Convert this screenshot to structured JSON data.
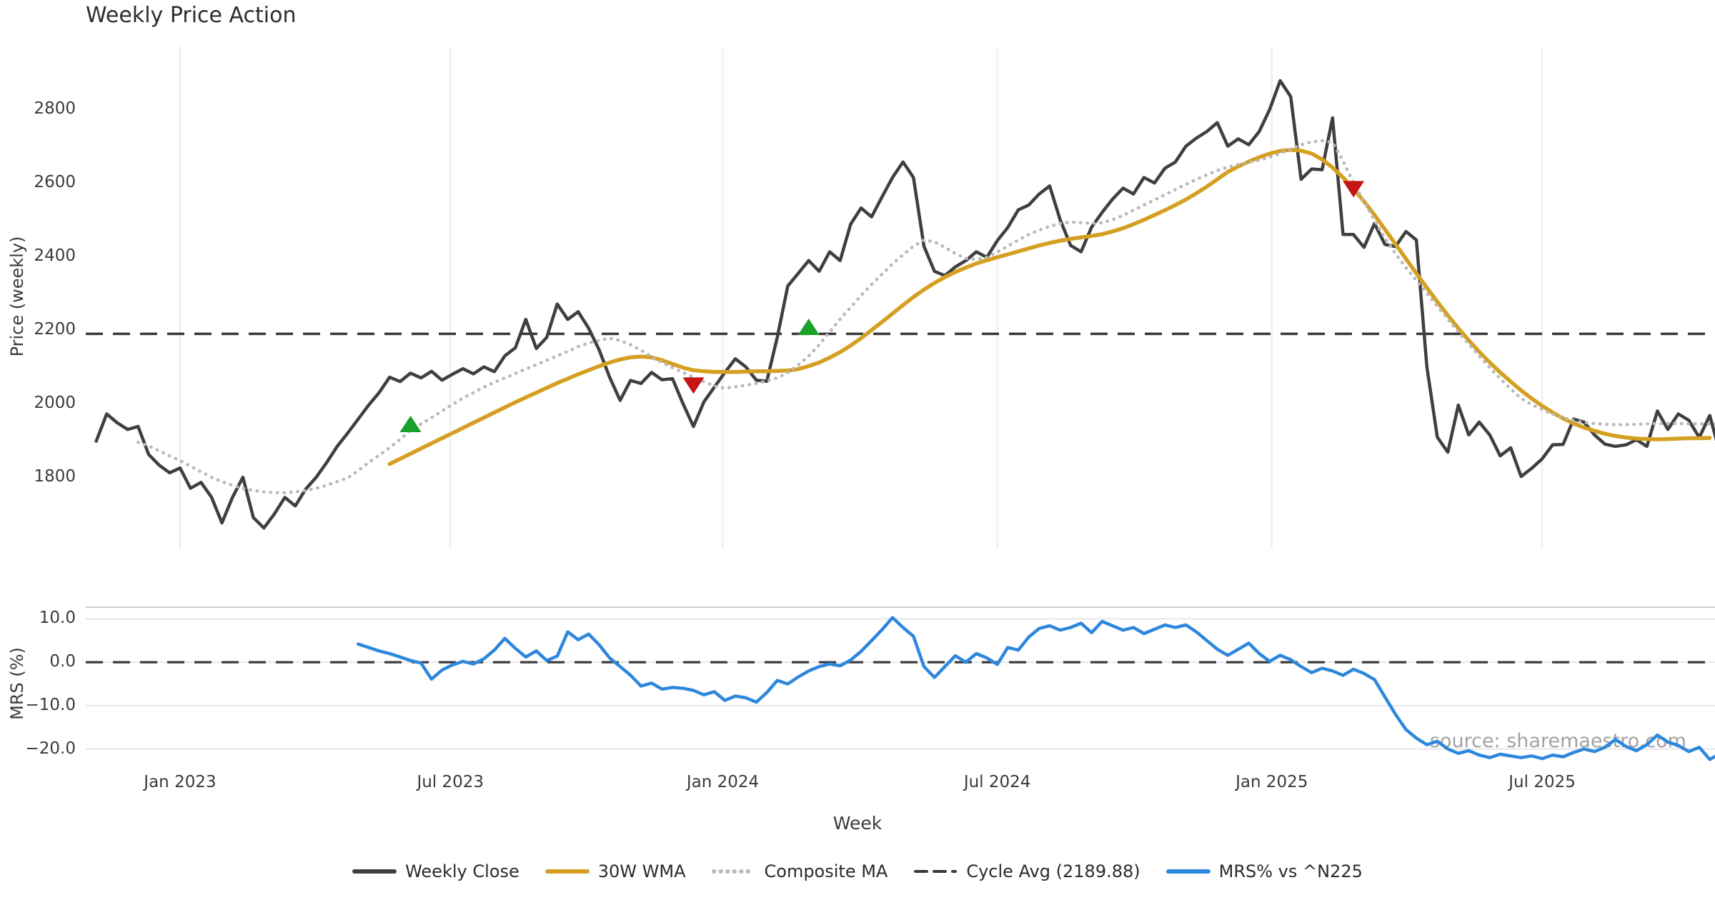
{
  "title": "Weekly Price Action",
  "watermark": "source: sharemaestro.com",
  "legend": [
    {
      "label": "Weekly Close",
      "color": "#3f3f3f",
      "style": "solid"
    },
    {
      "label": "30W WMA",
      "color": "#d5a021",
      "style": "solid"
    },
    {
      "label": "Composite MA",
      "color": "#b9b9b9",
      "style": "dotted"
    },
    {
      "label": "Cycle Avg (2189.88)",
      "color": "#3a3a3a",
      "style": "dashed"
    },
    {
      "label": "MRS% vs ^N225",
      "color": "#2d87dd",
      "style": "solid"
    }
  ],
  "colors": {
    "close": "#3f3f3f",
    "wma": "#d5a021",
    "composite": "#b9b9b9",
    "cycle": "#3a3a3a",
    "mrs": "#2d87dd",
    "buy": "#18a229",
    "sell": "#c51414",
    "grid_v": "#ececf0",
    "grid_h": "#e7e7eb",
    "spine": "#cfcfd4"
  },
  "chart_data": {
    "type": "line",
    "title": "Weekly Price Action",
    "xlabel": "Week",
    "x": {
      "unit": "weeks_from_jan_2023",
      "xlim_weeks": [
        -9,
        146.5
      ],
      "ticks": [
        {
          "label": "Jan 2023",
          "week": 0
        },
        {
          "label": "Jul 2023",
          "week": 25.8
        },
        {
          "label": "Jan 2024",
          "week": 51.8
        },
        {
          "label": "Jul 2024",
          "week": 78.0
        },
        {
          "label": "Jan 2025",
          "week": 104.2
        },
        {
          "label": "Jul 2025",
          "week": 130.0
        }
      ]
    },
    "panels": [
      {
        "name": "price",
        "ylabel": "Price (weekly)",
        "ylim": [
          1606,
          2981
        ],
        "yticks": [
          2800,
          2600,
          2400,
          2200,
          2000,
          1800
        ],
        "cycle_avg": 2189.88,
        "grid": "vertical",
        "series": [
          {
            "name": "Weekly Close",
            "style": "solid",
            "color_key": "close",
            "width": 4.5,
            "start_week": -8,
            "values": [
              1898,
              1972,
              1948,
              1930,
              1938,
              1862,
              1833,
              1812,
              1825,
              1770,
              1786,
              1746,
              1676,
              1745,
              1800,
              1690,
              1662,
              1700,
              1745,
              1722,
              1768,
              1800,
              1840,
              1884,
              1920,
              1958,
              1996,
              2030,
              2072,
              2060,
              2083,
              2070,
              2088,
              2064,
              2080,
              2095,
              2081,
              2100,
              2087,
              2130,
              2152,
              2229,
              2150,
              2180,
              2271,
              2229,
              2250,
              2205,
              2146,
              2072,
              2009,
              2063,
              2055,
              2085,
              2065,
              2068,
              2000,
              1938,
              2005,
              2045,
              2085,
              2122,
              2100,
              2064,
              2061,
              2180,
              2320,
              2354,
              2389,
              2360,
              2413,
              2389,
              2488,
              2532,
              2508,
              2562,
              2615,
              2657,
              2615,
              2428,
              2360,
              2348,
              2372,
              2389,
              2413,
              2398,
              2443,
              2479,
              2527,
              2540,
              2570,
              2592,
              2500,
              2430,
              2413,
              2480,
              2520,
              2556,
              2586,
              2570,
              2615,
              2600,
              2640,
              2657,
              2700,
              2722,
              2740,
              2764,
              2700,
              2720,
              2704,
              2740,
              2800,
              2878,
              2835,
              2610,
              2638,
              2636,
              2777,
              2460,
              2460,
              2425,
              2490,
              2433,
              2427,
              2468,
              2445,
              2100,
              1909,
              1868,
              1996,
              1915,
              1950,
              1915,
              1858,
              1880,
              1802,
              1824,
              1850,
              1888,
              1889,
              1958,
              1950,
              1915,
              1890,
              1884,
              1888,
              1902,
              1884,
              1980,
              1930,
              1972,
              1955,
              1908,
              1968,
              1862,
              1968
            ]
          },
          {
            "name": "30W WMA",
            "style": "solid",
            "color_key": "wma",
            "width": 5.5,
            "start_week": 20,
            "values": [
              1836,
              1850,
              1864,
              1878,
              1892,
              1906,
              1920,
              1934,
              1948,
              1962,
              1976,
              1990,
              2004,
              2017,
              2030,
              2043,
              2056,
              2068,
              2080,
              2091,
              2102,
              2112,
              2120,
              2126,
              2128,
              2126,
              2118,
              2108,
              2098,
              2091,
              2088,
              2086,
              2086,
              2086,
              2087,
              2088,
              2088,
              2089,
              2090,
              2094,
              2102,
              2112,
              2125,
              2140,
              2158,
              2178,
              2200,
              2222,
              2245,
              2268,
              2290,
              2310,
              2328,
              2344,
              2358,
              2370,
              2381,
              2390,
              2398,
              2406,
              2414,
              2422,
              2430,
              2437,
              2443,
              2448,
              2452,
              2456,
              2461,
              2468,
              2477,
              2488,
              2500,
              2513,
              2526,
              2540,
              2555,
              2572,
              2590,
              2610,
              2630,
              2645,
              2658,
              2670,
              2680,
              2687,
              2690,
              2688,
              2680,
              2664,
              2642,
              2615,
              2584,
              2550,
              2513,
              2474,
              2434,
              2394,
              2354,
              2315,
              2277,
              2240,
              2205,
              2172,
              2141,
              2112,
              2085,
              2060,
              2036,
              2014,
              1994,
              1976,
              1960,
              1946,
              1935,
              1926,
              1918,
              1912,
              1908,
              1905,
              1904,
              1903,
              1904,
              1905,
              1906,
              1906,
              1907
            ]
          },
          {
            "name": "Composite MA",
            "style": "dotted",
            "color_key": "composite",
            "width": 4.5,
            "start_week": -4,
            "values": [
              1895,
              1885,
              1872,
              1858,
              1845,
              1830,
              1815,
              1800,
              1788,
              1778,
              1770,
              1764,
              1760,
              1758,
              1758,
              1760,
              1764,
              1770,
              1778,
              1788,
              1798,
              1818,
              1840,
              1860,
              1880,
              1903,
              1928,
              1945,
              1962,
              1980,
              1998,
              2015,
              2030,
              2045,
              2058,
              2070,
              2082,
              2094,
              2106,
              2118,
              2130,
              2142,
              2155,
              2165,
              2172,
              2178,
              2172,
              2160,
              2145,
              2128,
              2112,
              2098,
              2085,
              2072,
              2060,
              2048,
              2042,
              2046,
              2050,
              2055,
              2062,
              2070,
              2085,
              2105,
              2130,
              2160,
              2195,
              2230,
              2262,
              2294,
              2324,
              2352,
              2380,
              2405,
              2428,
              2445,
              2440,
              2425,
              2408,
              2395,
              2392,
              2398,
              2412,
              2428,
              2445,
              2460,
              2472,
              2482,
              2490,
              2494,
              2492,
              2490,
              2492,
              2500,
              2512,
              2526,
              2540,
              2554,
              2568,
              2582,
              2596,
              2610,
              2622,
              2634,
              2643,
              2650,
              2656,
              2662,
              2670,
              2680,
              2692,
              2704,
              2712,
              2715,
              2710,
              2660,
              2600,
              2550,
              2498,
              2450,
              2408,
              2370,
              2335,
              2300,
              2265,
              2230,
              2195,
              2162,
              2130,
              2098,
              2068,
              2040,
              2014,
              1998,
              1984,
              1972,
              1962,
              1954,
              1949,
              1946,
              1944,
              1943,
              1943,
              1944,
              1945,
              1946,
              1946,
              1946,
              1945,
              1945,
              1945,
              1946,
              1946
            ]
          }
        ],
        "markers": [
          {
            "type": "buy",
            "shape": "triangle-up",
            "week": 22,
            "price": 1942
          },
          {
            "type": "sell",
            "shape": "triangle-down",
            "week": 49,
            "price": 2052
          },
          {
            "type": "buy",
            "shape": "triangle-up",
            "week": 60,
            "price": 2206
          },
          {
            "type": "sell",
            "shape": "triangle-down",
            "week": 112,
            "price": 2586
          }
        ]
      },
      {
        "name": "mrs",
        "ylabel": "MRS (%)",
        "ylim": [
          -22.7,
          12.7
        ],
        "yticks": [
          10,
          0,
          -10,
          -20
        ],
        "ytick_labels": [
          "10.0",
          "0.0",
          "−10.0",
          "−20.0"
        ],
        "zero_dashed": true,
        "grid": "horizontal",
        "series": [
          {
            "name": "MRS% vs ^N225",
            "style": "solid",
            "color_key": "mrs",
            "width": 4.5,
            "start_week": 17,
            "values": [
              4.2,
              3.4,
              2.6,
              2.0,
              1.2,
              0.4,
              -0.2,
              -3.9,
              -1.8,
              -0.6,
              0.2,
              -0.4,
              0.8,
              2.8,
              5.5,
              3.2,
              1.2,
              2.6,
              0.4,
              1.4,
              7.0,
              5.2,
              6.5,
              4.0,
              1.0,
              -1.0,
              -3.0,
              -5.5,
              -4.8,
              -6.2,
              -5.8,
              -6.0,
              -6.5,
              -7.5,
              -6.8,
              -8.8,
              -7.8,
              -8.2,
              -9.2,
              -7.0,
              -4.2,
              -5.0,
              -3.4,
              -2.0,
              -1.0,
              -0.4,
              -0.8,
              0.5,
              2.5,
              5.0,
              7.5,
              10.3,
              8.0,
              6.0,
              -1.0,
              -3.5,
              -1.0,
              1.5,
              0.0,
              2.0,
              1.0,
              -0.5,
              3.4,
              2.8,
              5.8,
              7.8,
              8.4,
              7.4,
              8.0,
              9.0,
              6.8,
              9.4,
              8.4,
              7.4,
              8.0,
              6.6,
              7.6,
              8.6,
              8.0,
              8.6,
              7.0,
              5.0,
              3.0,
              1.6,
              3.0,
              4.4,
              2.0,
              0.2,
              1.6,
              0.6,
              -1.0,
              -2.4,
              -1.4,
              -2.0,
              -3.0,
              -1.6,
              -2.6,
              -4.0,
              -8.0,
              -12.0,
              -15.5,
              -17.5,
              -19.0,
              -18.2,
              -20.0,
              -21.0,
              -20.4,
              -21.4,
              -22.0,
              -21.2,
              -21.6,
              -22.0,
              -21.6,
              -22.2,
              -21.4,
              -21.8,
              -20.8,
              -20.0,
              -20.6,
              -19.6,
              -17.8,
              -19.4,
              -20.4,
              -19.0,
              -16.8,
              -18.4,
              -19.2,
              -20.6,
              -19.6,
              -22.4,
              -21.0,
              -18.9
            ]
          }
        ]
      }
    ]
  }
}
